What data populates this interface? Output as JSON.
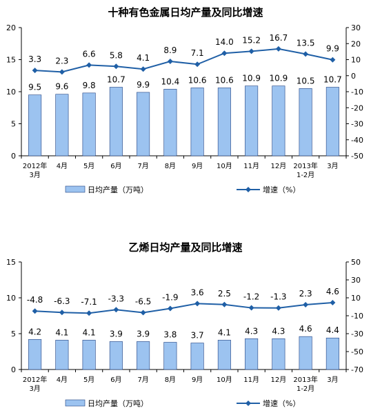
{
  "chart_data": [
    {
      "type": "bar",
      "title": "十种有色金属日均产量及同比增速",
      "categories": [
        "2012年\n3月",
        "4月",
        "5月",
        "6月",
        "7月",
        "8月",
        "9月",
        "10月",
        "11月",
        "12月",
        "2013年\n1-2月",
        "3月"
      ],
      "series": [
        {
          "name": "日均产量（万吨）",
          "type": "bar",
          "axis": "left",
          "values": [
            9.5,
            9.6,
            9.8,
            10.7,
            9.9,
            10.4,
            10.6,
            10.6,
            10.9,
            10.9,
            10.5,
            10.7
          ],
          "labels": [
            "9.5",
            "9.6",
            "9.8",
            "10.7",
            "9.9",
            "10.4",
            "10.6",
            "10.6",
            "10.9",
            "10.9",
            "10.5",
            "10.7"
          ]
        },
        {
          "name": "增速（%）",
          "type": "line",
          "axis": "right",
          "values": [
            3.3,
            2.3,
            6.6,
            5.8,
            4.1,
            8.9,
            7.1,
            14.0,
            15.2,
            16.7,
            13.5,
            9.9
          ],
          "labels": [
            "3.3",
            "2.3",
            "6.6",
            "5.8",
            "4.1",
            "8.9",
            "7.1",
            "14.0",
            "15.2",
            "16.7",
            "13.5",
            "9.9"
          ]
        }
      ],
      "left_axis": {
        "range": [
          0,
          20
        ],
        "ticks": [
          "0",
          "5",
          "10",
          "15",
          "20"
        ]
      },
      "right_axis": {
        "range": [
          -50,
          30
        ],
        "ticks": [
          "-50",
          "-40",
          "-30",
          "-20",
          "-10",
          "0",
          "10",
          "20",
          "30"
        ]
      },
      "grid": false,
      "legend_position": "bottom",
      "colors": {
        "bar_fill": "#9cc3f0",
        "bar_stroke": "#1f3f7f",
        "line": "#1f5fa6",
        "marker": "#1f5fa6",
        "axis": "#000000"
      }
    },
    {
      "type": "bar",
      "title": "乙烯日均产量及同比增速",
      "categories": [
        "2012年\n3月",
        "4月",
        "5月",
        "6月",
        "7月",
        "8月",
        "9月",
        "10月",
        "11月",
        "12月",
        "2013年\n1-2月",
        "3月"
      ],
      "series": [
        {
          "name": "日均产量（万吨）",
          "type": "bar",
          "axis": "left",
          "values": [
            4.2,
            4.1,
            4.1,
            3.9,
            3.9,
            3.8,
            3.7,
            4.1,
            4.3,
            4.3,
            4.6,
            4.4
          ],
          "labels": [
            "4.2",
            "4.1",
            "4.1",
            "3.9",
            "3.9",
            "3.8",
            "3.7",
            "4.1",
            "4.3",
            "4.3",
            "4.6",
            "4.4"
          ]
        },
        {
          "name": "增速（%）",
          "type": "line",
          "axis": "right",
          "values": [
            -4.8,
            -6.3,
            -7.1,
            -3.3,
            -6.5,
            -1.9,
            3.6,
            2.5,
            -1.2,
            -1.3,
            2.3,
            4.6
          ],
          "labels": [
            "-4.8",
            "-6.3",
            "-7.1",
            "-3.3",
            "-6.5",
            "-1.9",
            "3.6",
            "2.5",
            "-1.2",
            "-1.3",
            "2.3",
            "4.6"
          ]
        }
      ],
      "left_axis": {
        "range": [
          0,
          15
        ],
        "ticks": [
          "0",
          "5",
          "10",
          "15"
        ]
      },
      "right_axis": {
        "range": [
          -70,
          50
        ],
        "ticks": [
          "-70",
          "-50",
          "-30",
          "-10",
          "10",
          "30",
          "50"
        ]
      },
      "grid": false,
      "legend_position": "bottom",
      "colors": {
        "bar_fill": "#9cc3f0",
        "bar_stroke": "#1f3f7f",
        "line": "#1f5fa6",
        "marker": "#1f5fa6",
        "axis": "#000000"
      }
    }
  ]
}
